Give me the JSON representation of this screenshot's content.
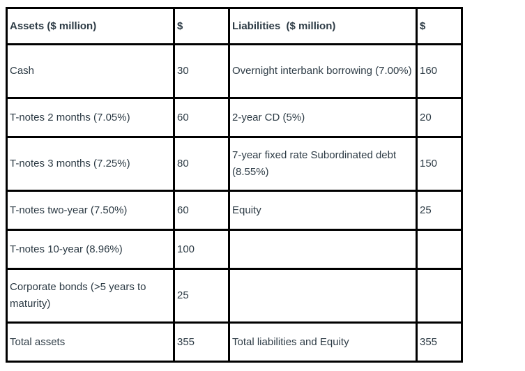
{
  "colors": {
    "border": "#000000",
    "text": "#2d3b45",
    "background": "#ffffff"
  },
  "table": {
    "columns": {
      "assets": "Assets ($ million)",
      "assets_value": "$",
      "liabilities": "Liabilities  ($ million)",
      "liabilities_value": "$"
    },
    "rows": [
      {
        "asset": "Cash",
        "asset_value": "30",
        "liability": "Overnight interbank borrowing (7.00%)",
        "liability_value": "160"
      },
      {
        "asset": "T-notes 2 months (7.05%)",
        "asset_value": "60",
        "liability": "2-year CD (5%)",
        "liability_value": "20"
      },
      {
        "asset": "T-notes 3 months (7.25%)",
        "asset_value": "80",
        "liability": "7-year fixed rate Subordinated debt (8.55%)",
        "liability_value": "150"
      },
      {
        "asset": "T-notes two-year (7.50%)",
        "asset_value": "60",
        "liability": "Equity",
        "liability_value": "25"
      },
      {
        "asset": "T-notes 10-year (8.96%)",
        "asset_value": "100",
        "liability": "",
        "liability_value": ""
      },
      {
        "asset": "Corporate bonds (>5 years to maturity)",
        "asset_value": "25",
        "liability": "",
        "liability_value": ""
      },
      {
        "asset": "Total assets",
        "asset_value": "355",
        "liability": "Total liabilities and Equity",
        "liability_value": "355"
      }
    ]
  }
}
